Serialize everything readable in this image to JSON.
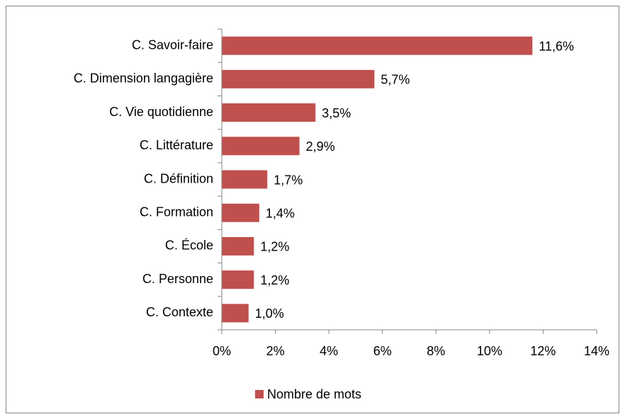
{
  "chart_data": {
    "type": "hbar",
    "categories": [
      "C. Savoir-faire",
      "C. Dimension langagière",
      "C. Vie quotidienne",
      "C. Littérature",
      "C. Définition",
      "C. Formation",
      "C. École",
      "C. Personne",
      "C. Contexte"
    ],
    "series": [
      {
        "name": "Nombre de mots",
        "color": "#c0504d",
        "values": [
          11.6,
          5.7,
          3.5,
          2.9,
          1.7,
          1.4,
          1.2,
          1.2,
          1.0
        ],
        "value_labels": [
          "11,6%",
          "5,7%",
          "3,5%",
          "2,9%",
          "1,7%",
          "1,4%",
          "1,2%",
          "1,2%",
          "1,0%"
        ]
      }
    ],
    "xlim": [
      0,
      14
    ],
    "xticks": [
      {
        "value": 0,
        "label": "0%"
      },
      {
        "value": 2,
        "label": "2%"
      },
      {
        "value": 4,
        "label": "4%"
      },
      {
        "value": 6,
        "label": "6%"
      },
      {
        "value": 8,
        "label": "8%"
      },
      {
        "value": 10,
        "label": "10%"
      },
      {
        "value": 12,
        "label": "12%"
      },
      {
        "value": 14,
        "label": "14%"
      }
    ],
    "legend": "bottom"
  }
}
